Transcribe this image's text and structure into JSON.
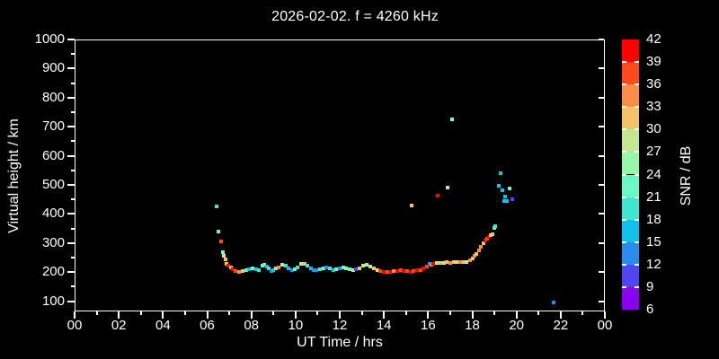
{
  "title": "2026-02-02. f = 4260 kHz",
  "chart_data": {
    "type": "scatter",
    "title": "2026-02-02. f = 4260 kHz",
    "xlabel": "UT Time / hrs",
    "ylabel": "Virtual height / km",
    "xlim": [
      0,
      24
    ],
    "ylim": [
      65,
      1000
    ],
    "grid": "off",
    "background_color": "#000000",
    "axis_color": "#ffffff",
    "x_major_ticks": [
      0,
      2,
      4,
      6,
      8,
      10,
      12,
      14,
      16,
      18,
      20,
      22,
      24
    ],
    "x_major_labels": [
      "00",
      "02",
      "04",
      "06",
      "08",
      "10",
      "12",
      "14",
      "16",
      "18",
      "20",
      "22",
      "00"
    ],
    "x_minor_step": 1,
    "y_major_ticks": [
      100,
      200,
      300,
      400,
      500,
      600,
      700,
      800,
      900,
      1000
    ],
    "y_minor_step": 50,
    "colorbar": {
      "label": "SNR / dB",
      "min": 6,
      "max": 42,
      "step": 3,
      "tick_values": [
        6,
        9,
        12,
        15,
        18,
        21,
        24,
        27,
        30,
        33,
        36,
        39,
        42
      ],
      "colors_bottom_to_top": [
        "#8800ee",
        "#5046f0",
        "#2b8cf0",
        "#11c1e8",
        "#40e6d0",
        "#6cf7c4",
        "#96f7a8",
        "#c4e693",
        "#f2c368",
        "#fc8d49",
        "#ff4a1e",
        "#ff0000"
      ]
    },
    "points_format": [
      "ut_hours",
      "virtual_height_km",
      "snr_db"
    ],
    "points": [
      [
        6.43,
        425,
        19
      ],
      [
        6.5,
        341,
        22
      ],
      [
        6.63,
        306,
        37
      ],
      [
        6.7,
        270,
        25
      ],
      [
        6.76,
        256,
        28
      ],
      [
        6.82,
        243,
        31
      ],
      [
        6.89,
        230,
        31
      ],
      [
        6.97,
        222,
        40
      ],
      [
        7.06,
        216,
        31
      ],
      [
        7.16,
        210,
        40
      ],
      [
        7.3,
        204,
        37
      ],
      [
        7.45,
        201,
        34
      ],
      [
        7.6,
        204,
        31
      ],
      [
        7.75,
        207,
        22
      ],
      [
        7.9,
        211,
        16
      ],
      [
        8.05,
        213,
        22
      ],
      [
        8.2,
        211,
        16
      ],
      [
        8.35,
        208,
        19
      ],
      [
        8.5,
        222,
        22
      ],
      [
        8.6,
        226,
        22
      ],
      [
        8.7,
        220,
        16
      ],
      [
        8.8,
        212,
        19
      ],
      [
        8.9,
        205,
        13
      ],
      [
        9.0,
        208,
        16
      ],
      [
        9.1,
        212,
        25
      ],
      [
        9.25,
        215,
        34
      ],
      [
        9.4,
        227,
        28
      ],
      [
        9.55,
        222,
        19
      ],
      [
        9.7,
        213,
        16
      ],
      [
        9.85,
        207,
        13
      ],
      [
        9.95,
        210,
        22
      ],
      [
        10.1,
        215,
        19
      ],
      [
        10.25,
        228,
        28
      ],
      [
        10.4,
        230,
        31
      ],
      [
        10.55,
        222,
        19
      ],
      [
        10.7,
        214,
        16
      ],
      [
        10.8,
        208,
        13
      ],
      [
        10.95,
        206,
        13
      ],
      [
        11.1,
        209,
        19
      ],
      [
        11.25,
        213,
        22
      ],
      [
        11.4,
        216,
        13
      ],
      [
        11.55,
        212,
        19
      ],
      [
        11.7,
        208,
        16
      ],
      [
        11.85,
        210,
        22
      ],
      [
        12.0,
        213,
        13
      ],
      [
        12.15,
        215,
        22
      ],
      [
        12.3,
        212,
        25
      ],
      [
        12.45,
        209,
        22
      ],
      [
        12.6,
        207,
        28
      ],
      [
        12.75,
        210,
        10
      ],
      [
        12.9,
        214,
        31
      ],
      [
        13.05,
        222,
        25
      ],
      [
        13.2,
        226,
        28
      ],
      [
        13.4,
        218,
        28
      ],
      [
        13.55,
        212,
        31
      ],
      [
        13.7,
        207,
        28
      ],
      [
        13.85,
        204,
        37
      ],
      [
        14.0,
        202,
        40
      ],
      [
        14.15,
        200,
        37
      ],
      [
        14.3,
        201,
        40
      ],
      [
        14.45,
        203,
        34
      ],
      [
        14.6,
        205,
        40
      ],
      [
        14.75,
        207,
        37
      ],
      [
        14.9,
        205,
        40
      ],
      [
        15.05,
        203,
        37
      ],
      [
        15.2,
        202,
        40
      ],
      [
        15.35,
        204,
        37
      ],
      [
        15.5,
        206,
        40
      ],
      [
        15.65,
        208,
        37
      ],
      [
        15.8,
        213,
        40
      ],
      [
        15.95,
        219,
        37
      ],
      [
        16.05,
        229,
        13
      ],
      [
        16.15,
        224,
        34
      ],
      [
        16.25,
        230,
        40
      ],
      [
        16.4,
        231,
        28
      ],
      [
        16.55,
        233,
        31
      ],
      [
        16.7,
        232,
        28
      ],
      [
        16.85,
        234,
        31
      ],
      [
        17.0,
        233,
        34
      ],
      [
        17.15,
        235,
        31
      ],
      [
        17.3,
        234,
        28
      ],
      [
        17.45,
        236,
        34
      ],
      [
        17.6,
        234,
        31
      ],
      [
        17.75,
        236,
        28
      ],
      [
        17.9,
        240,
        34
      ],
      [
        18.0,
        247,
        31
      ],
      [
        18.1,
        255,
        34
      ],
      [
        18.2,
        264,
        31
      ],
      [
        18.3,
        275,
        34
      ],
      [
        18.4,
        288,
        34
      ],
      [
        18.5,
        298,
        31
      ],
      [
        18.6,
        308,
        40
      ],
      [
        18.68,
        316,
        37
      ],
      [
        18.76,
        321,
        40
      ],
      [
        18.84,
        326,
        31
      ],
      [
        18.92,
        331,
        31
      ],
      [
        19.0,
        353,
        22
      ],
      [
        19.04,
        358,
        19
      ],
      [
        15.27,
        430,
        31
      ],
      [
        16.42,
        464,
        40
      ],
      [
        16.88,
        492,
        28
      ],
      [
        17.1,
        726,
        25
      ],
      [
        19.2,
        498,
        16
      ],
      [
        19.28,
        540,
        16
      ],
      [
        19.36,
        483,
        16
      ],
      [
        19.5,
        460,
        16
      ],
      [
        19.44,
        444,
        16
      ],
      [
        19.58,
        444,
        16
      ],
      [
        19.69,
        489,
        22
      ],
      [
        19.8,
        450,
        10
      ],
      [
        21.68,
        95,
        13
      ]
    ]
  }
}
